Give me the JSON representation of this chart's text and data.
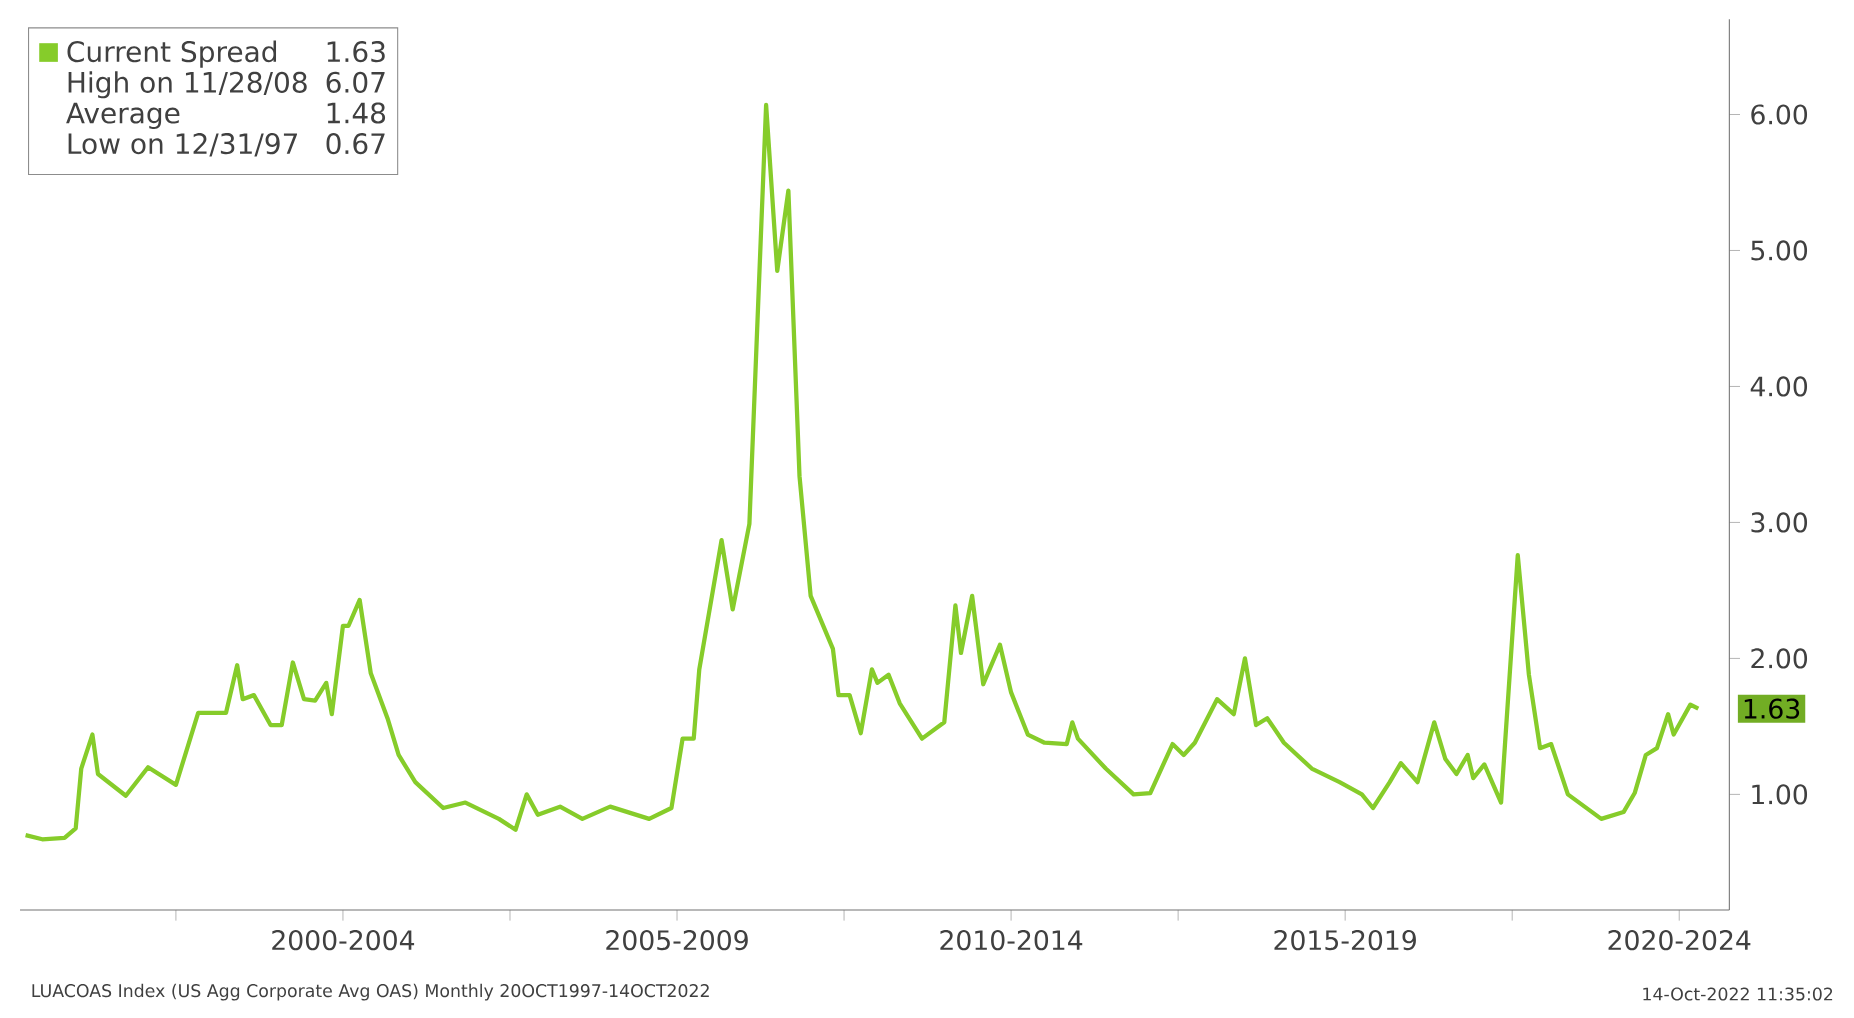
{
  "chart_data": {
    "type": "line",
    "legend": "top left",
    "x": [
      "1997-10",
      "1998-01",
      "1998-05",
      "1998-07",
      "1998-08",
      "1998-10",
      "1998-11",
      "1999-04",
      "1999-08",
      "2000-01",
      "2000-05",
      "2000-10",
      "2000-12",
      "2001-01",
      "2001-03",
      "2001-06",
      "2001-08",
      "2001-10",
      "2001-12",
      "2002-02",
      "2002-04",
      "2002-05",
      "2002-07",
      "2002-08",
      "2002-10",
      "2002-12",
      "2003-03",
      "2003-05",
      "2003-08",
      "2004-01",
      "2004-05",
      "2004-11",
      "2005-02",
      "2005-04",
      "2005-06",
      "2005-10",
      "2006-02",
      "2006-07",
      "2007-02",
      "2007-06",
      "2007-08",
      "2007-10",
      "2007-11",
      "2008-03",
      "2008-05",
      "2008-08",
      "2008-11",
      "2009-01",
      "2009-03",
      "2009-05",
      "2009-07",
      "2009-11",
      "2009-12",
      "2010-02",
      "2010-04",
      "2010-06",
      "2010-07",
      "2010-09",
      "2010-11",
      "2011-03",
      "2011-07",
      "2011-09",
      "2011-10",
      "2011-12",
      "2012-02",
      "2012-05",
      "2012-07",
      "2012-10",
      "2013-01",
      "2013-05",
      "2013-06",
      "2013-07",
      "2013-12",
      "2014-05",
      "2014-08",
      "2014-12",
      "2015-02",
      "2015-04",
      "2015-08",
      "2015-11",
      "2016-01",
      "2016-03",
      "2016-05",
      "2016-08",
      "2017-01",
      "2017-06",
      "2017-10",
      "2017-12",
      "2018-03",
      "2018-05",
      "2018-08",
      "2018-11",
      "2019-01",
      "2019-03",
      "2019-05",
      "2019-06",
      "2019-08",
      "2019-11",
      "2020-02",
      "2020-04",
      "2020-06",
      "2020-08",
      "2020-11",
      "2021-05",
      "2021-09",
      "2021-11",
      "2022-01",
      "2022-03",
      "2022-05",
      "2022-06",
      "2022-09",
      "2022-10-14"
    ],
    "series": [
      {
        "name": "Current Spread",
        "color": "#86cc2a",
        "values": [
          0.7,
          0.67,
          0.68,
          0.75,
          1.19,
          1.44,
          1.15,
          0.99,
          1.2,
          1.07,
          1.6,
          1.6,
          1.95,
          1.7,
          1.73,
          1.51,
          1.51,
          1.97,
          1.7,
          1.69,
          1.82,
          1.59,
          2.24,
          2.24,
          2.43,
          1.89,
          1.56,
          1.29,
          1.09,
          0.9,
          0.94,
          0.82,
          0.74,
          1.0,
          0.85,
          0.91,
          0.82,
          0.91,
          0.82,
          0.9,
          1.41,
          1.41,
          1.92,
          2.87,
          2.36,
          2.99,
          6.07,
          4.85,
          5.44,
          3.34,
          2.46,
          2.07,
          1.73,
          1.73,
          1.45,
          1.92,
          1.82,
          1.88,
          1.67,
          1.41,
          1.53,
          2.39,
          2.04,
          2.46,
          1.81,
          2.1,
          1.75,
          1.44,
          1.38,
          1.37,
          1.53,
          1.41,
          1.19,
          1.0,
          1.01,
          1.37,
          1.29,
          1.38,
          1.7,
          1.59,
          2.0,
          1.51,
          1.56,
          1.38,
          1.19,
          1.09,
          1.0,
          0.9,
          1.09,
          1.23,
          1.09,
          1.53,
          1.26,
          1.15,
          1.29,
          1.12,
          1.22,
          0.94,
          2.76,
          1.88,
          1.34,
          1.37,
          1.0,
          0.82,
          0.87,
          1.01,
          1.29,
          1.34,
          1.59,
          1.44,
          1.66,
          1.63
        ]
      }
    ],
    "xlim": [
      "1997-09",
      "2023-04"
    ],
    "xticks": [
      {
        "value": "2000-01",
        "label": null
      },
      {
        "value": "2002-07",
        "label": "2000-2004"
      },
      {
        "value": "2005-01",
        "label": null
      },
      {
        "value": "2007-07",
        "label": "2005-2009"
      },
      {
        "value": "2010-01",
        "label": null
      },
      {
        "value": "2012-07",
        "label": "2010-2014"
      },
      {
        "value": "2015-01",
        "label": null
      },
      {
        "value": "2017-07",
        "label": "2015-2019"
      },
      {
        "value": "2020-01",
        "label": null
      },
      {
        "value": "2022-07",
        "label": "2020-2024"
      }
    ],
    "ylim": [
      0.15,
      6.7
    ],
    "yticks": [
      {
        "value": 1,
        "label": "1.00"
      },
      {
        "value": 2,
        "label": "2.00"
      },
      {
        "value": 3,
        "label": "3.00"
      },
      {
        "value": 4,
        "label": "4.00"
      },
      {
        "value": 5,
        "label": "5.00"
      },
      {
        "value": 6,
        "label": "6.00"
      }
    ],
    "annotations": [
      "1.63",
      "1.63",
      "High on 11/28/08",
      "6.07",
      "Average",
      "1.48",
      "Low on 12/31/97",
      "0.67",
      "LUACOAS Index (US Agg Corporate Avg OAS)  Monthly 20OCT1997-14OCT2022",
      "14-Oct-2022 11:35:02"
    ]
  }
}
